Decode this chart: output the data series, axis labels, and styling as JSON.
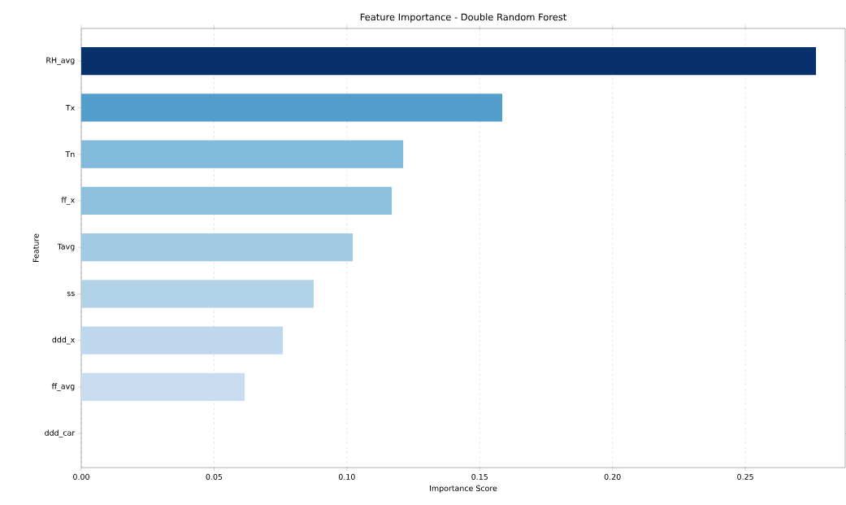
{
  "chart_data": {
    "type": "bar",
    "orientation": "horizontal",
    "title": "Feature Importance - Double Random Forest",
    "xlabel": "Importance Score",
    "ylabel": "Feature",
    "categories": [
      "RH_avg",
      "Tx",
      "Tn",
      "ff_x",
      "Tavg",
      "ss",
      "ddd_x",
      "ff_avg",
      "ddd_car"
    ],
    "values": [
      0.2766,
      0.1585,
      0.1212,
      0.1169,
      0.1022,
      0.0875,
      0.0759,
      0.0615,
      0
    ],
    "colors": [
      "#08306b",
      "#539ecd",
      "#82badb",
      "#8cc0dd",
      "#a1cbe2",
      "#b2d2e8",
      "#c0d8ed",
      "#cadcef",
      "#dbe9f6"
    ],
    "xlim": [
      0,
      0.2876
    ],
    "xticks": [
      {
        "value": 0,
        "label": "0.00"
      },
      {
        "value": 0.05,
        "label": "0.05"
      },
      {
        "value": 0.1,
        "label": "0.10"
      },
      {
        "value": 0.15,
        "label": "0.15"
      },
      {
        "value": 0.2,
        "label": "0.20"
      },
      {
        "value": 0.25,
        "label": "0.25"
      }
    ],
    "grid": "x"
  }
}
